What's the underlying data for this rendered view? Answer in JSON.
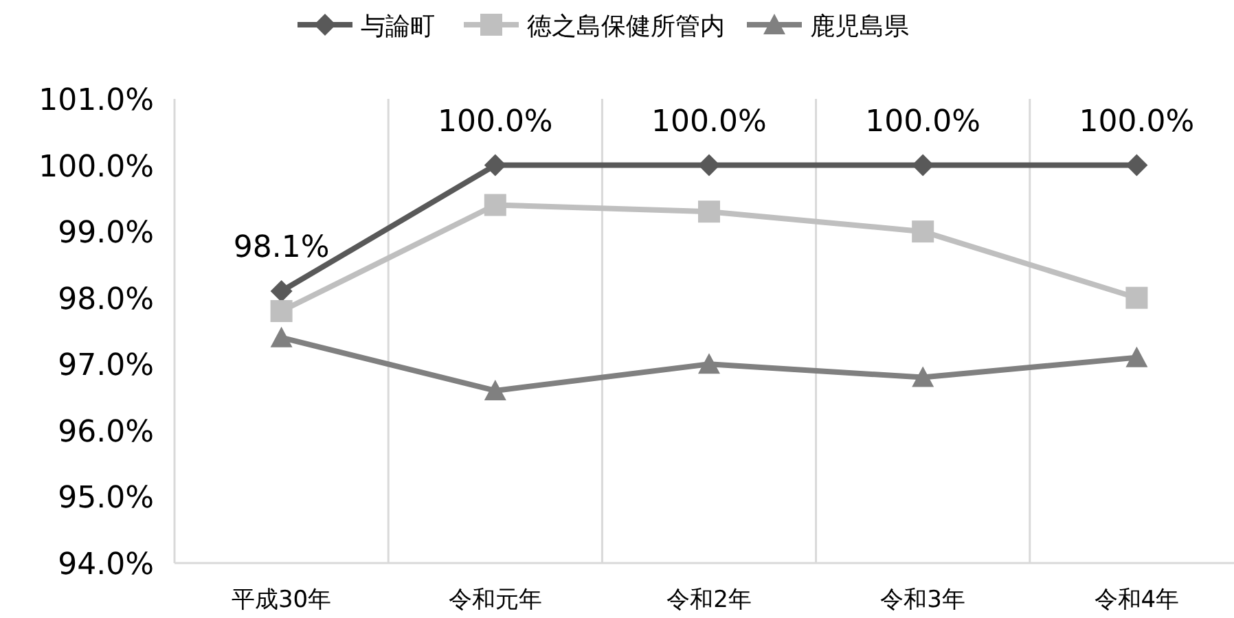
{
  "chart_data": {
    "type": "line",
    "categories": [
      "平成30年",
      "令和元年",
      "令和2年",
      "令和3年",
      "令和4年"
    ],
    "series": [
      {
        "name": "与論町",
        "color": "#595959",
        "marker": "diamond",
        "values": [
          98.1,
          100.0,
          100.0,
          100.0,
          100.0
        ],
        "value_labels": [
          "98.1%",
          "100.0%",
          "100.0%",
          "100.0%",
          "100.0%"
        ]
      },
      {
        "name": "徳之島保健所管内",
        "color": "#bfbfbf",
        "marker": "square",
        "values": [
          97.8,
          99.4,
          99.3,
          99.0,
          98.0
        ]
      },
      {
        "name": "鹿児島県",
        "color": "#808080",
        "marker": "triangle",
        "values": [
          97.4,
          96.6,
          97.0,
          96.8,
          97.1
        ]
      }
    ],
    "ylim": [
      94,
      101
    ],
    "yticks": [
      {
        "value": 94,
        "label": "94.0%"
      },
      {
        "value": 95,
        "label": "95.0%"
      },
      {
        "value": 96,
        "label": "96.0%"
      },
      {
        "value": 97,
        "label": "97.0%"
      },
      {
        "value": 98,
        "label": "98.0%"
      },
      {
        "value": 99,
        "label": "99.0%"
      },
      {
        "value": 100,
        "label": "100.0%"
      },
      {
        "value": 101,
        "label": "101.0%"
      }
    ],
    "grid": "x",
    "legend": "top"
  }
}
